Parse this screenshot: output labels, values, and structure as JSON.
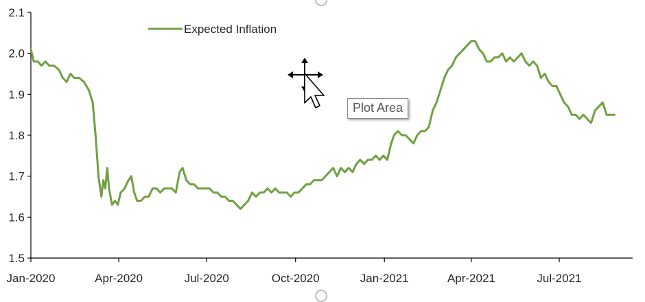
{
  "tooltip": {
    "text": "Plot Area"
  },
  "chart_data": {
    "type": "line",
    "title": "",
    "xlabel": "",
    "ylabel": "",
    "ylim": [
      1.5,
      2.1
    ],
    "yticks": [
      "1.5",
      "1.6",
      "1.7",
      "1.8",
      "1.9",
      "2.0",
      "2.1"
    ],
    "xlim": [
      "2020-01-01",
      "2021-09-15"
    ],
    "xticks": [
      {
        "date": "2020-01-01",
        "label": "Jan-2020"
      },
      {
        "date": "2020-04-01",
        "label": "Apr-2020"
      },
      {
        "date": "2020-07-01",
        "label": "Jul-2020"
      },
      {
        "date": "2020-10-01",
        "label": "Oct-2020"
      },
      {
        "date": "2021-01-01",
        "label": "Jan-2021"
      },
      {
        "date": "2021-04-01",
        "label": "Apr-2021"
      },
      {
        "date": "2021-07-01",
        "label": "Jul-2021"
      }
    ],
    "legend_position": "top-left",
    "grid": false,
    "series": [
      {
        "name": "Expected Inflation",
        "color": "#70a040",
        "points": [
          [
            "2020-01-01",
            2.01
          ],
          [
            "2020-01-04",
            1.98
          ],
          [
            "2020-01-08",
            1.98
          ],
          [
            "2020-01-12",
            1.97
          ],
          [
            "2020-01-16",
            1.98
          ],
          [
            "2020-01-20",
            1.97
          ],
          [
            "2020-01-25",
            1.97
          ],
          [
            "2020-01-30",
            1.96
          ],
          [
            "2020-02-03",
            1.94
          ],
          [
            "2020-02-07",
            1.93
          ],
          [
            "2020-02-11",
            1.95
          ],
          [
            "2020-02-15",
            1.94
          ],
          [
            "2020-02-20",
            1.94
          ],
          [
            "2020-02-25",
            1.93
          ],
          [
            "2020-03-01",
            1.91
          ],
          [
            "2020-03-05",
            1.88
          ],
          [
            "2020-03-08",
            1.8
          ],
          [
            "2020-03-11",
            1.7
          ],
          [
            "2020-03-14",
            1.65
          ],
          [
            "2020-03-16",
            1.69
          ],
          [
            "2020-03-18",
            1.67
          ],
          [
            "2020-03-20",
            1.72
          ],
          [
            "2020-03-22",
            1.67
          ],
          [
            "2020-03-25",
            1.63
          ],
          [
            "2020-03-28",
            1.64
          ],
          [
            "2020-03-31",
            1.63
          ],
          [
            "2020-04-03",
            1.66
          ],
          [
            "2020-04-07",
            1.67
          ],
          [
            "2020-04-11",
            1.69
          ],
          [
            "2020-04-14",
            1.7
          ],
          [
            "2020-04-17",
            1.66
          ],
          [
            "2020-04-20",
            1.64
          ],
          [
            "2020-04-24",
            1.64
          ],
          [
            "2020-04-28",
            1.65
          ],
          [
            "2020-05-02",
            1.65
          ],
          [
            "2020-05-06",
            1.67
          ],
          [
            "2020-05-10",
            1.67
          ],
          [
            "2020-05-14",
            1.66
          ],
          [
            "2020-05-18",
            1.67
          ],
          [
            "2020-05-22",
            1.67
          ],
          [
            "2020-05-26",
            1.67
          ],
          [
            "2020-05-30",
            1.66
          ],
          [
            "2020-06-03",
            1.71
          ],
          [
            "2020-06-06",
            1.72
          ],
          [
            "2020-06-10",
            1.69
          ],
          [
            "2020-06-14",
            1.68
          ],
          [
            "2020-06-18",
            1.68
          ],
          [
            "2020-06-22",
            1.67
          ],
          [
            "2020-06-26",
            1.67
          ],
          [
            "2020-06-30",
            1.67
          ],
          [
            "2020-07-04",
            1.67
          ],
          [
            "2020-07-08",
            1.66
          ],
          [
            "2020-07-12",
            1.66
          ],
          [
            "2020-07-16",
            1.65
          ],
          [
            "2020-07-20",
            1.65
          ],
          [
            "2020-07-24",
            1.64
          ],
          [
            "2020-07-28",
            1.64
          ],
          [
            "2020-08-01",
            1.63
          ],
          [
            "2020-08-05",
            1.62
          ],
          [
            "2020-08-09",
            1.63
          ],
          [
            "2020-08-13",
            1.64
          ],
          [
            "2020-08-17",
            1.66
          ],
          [
            "2020-08-21",
            1.65
          ],
          [
            "2020-08-25",
            1.66
          ],
          [
            "2020-08-29",
            1.66
          ],
          [
            "2020-09-02",
            1.67
          ],
          [
            "2020-09-06",
            1.66
          ],
          [
            "2020-09-10",
            1.67
          ],
          [
            "2020-09-14",
            1.66
          ],
          [
            "2020-09-18",
            1.66
          ],
          [
            "2020-09-22",
            1.66
          ],
          [
            "2020-09-26",
            1.65
          ],
          [
            "2020-09-30",
            1.66
          ],
          [
            "2020-10-04",
            1.66
          ],
          [
            "2020-10-08",
            1.67
          ],
          [
            "2020-10-12",
            1.68
          ],
          [
            "2020-10-16",
            1.68
          ],
          [
            "2020-10-20",
            1.69
          ],
          [
            "2020-10-24",
            1.69
          ],
          [
            "2020-10-28",
            1.69
          ],
          [
            "2020-11-01",
            1.7
          ],
          [
            "2020-11-05",
            1.71
          ],
          [
            "2020-11-09",
            1.72
          ],
          [
            "2020-11-13",
            1.7
          ],
          [
            "2020-11-17",
            1.72
          ],
          [
            "2020-11-21",
            1.71
          ],
          [
            "2020-11-25",
            1.72
          ],
          [
            "2020-11-29",
            1.71
          ],
          [
            "2020-12-03",
            1.73
          ],
          [
            "2020-12-07",
            1.74
          ],
          [
            "2020-12-11",
            1.73
          ],
          [
            "2020-12-15",
            1.74
          ],
          [
            "2020-12-19",
            1.74
          ],
          [
            "2020-12-23",
            1.75
          ],
          [
            "2020-12-27",
            1.74
          ],
          [
            "2020-12-31",
            1.75
          ],
          [
            "2021-01-04",
            1.74
          ],
          [
            "2021-01-08",
            1.78
          ],
          [
            "2021-01-11",
            1.8
          ],
          [
            "2021-01-15",
            1.81
          ],
          [
            "2021-01-19",
            1.8
          ],
          [
            "2021-01-23",
            1.8
          ],
          [
            "2021-01-27",
            1.79
          ],
          [
            "2021-01-31",
            1.78
          ],
          [
            "2021-02-04",
            1.8
          ],
          [
            "2021-02-08",
            1.81
          ],
          [
            "2021-02-12",
            1.81
          ],
          [
            "2021-02-16",
            1.82
          ],
          [
            "2021-02-20",
            1.86
          ],
          [
            "2021-02-24",
            1.88
          ],
          [
            "2021-02-28",
            1.91
          ],
          [
            "2021-03-04",
            1.94
          ],
          [
            "2021-03-08",
            1.96
          ],
          [
            "2021-03-12",
            1.97
          ],
          [
            "2021-03-16",
            1.99
          ],
          [
            "2021-03-20",
            2.0
          ],
          [
            "2021-03-24",
            2.01
          ],
          [
            "2021-03-28",
            2.02
          ],
          [
            "2021-04-01",
            2.03
          ],
          [
            "2021-04-05",
            2.03
          ],
          [
            "2021-04-09",
            2.01
          ],
          [
            "2021-04-13",
            2.0
          ],
          [
            "2021-04-17",
            1.98
          ],
          [
            "2021-04-21",
            1.98
          ],
          [
            "2021-04-25",
            1.99
          ],
          [
            "2021-04-29",
            1.99
          ],
          [
            "2021-05-03",
            2.0
          ],
          [
            "2021-05-07",
            1.98
          ],
          [
            "2021-05-11",
            1.99
          ],
          [
            "2021-05-15",
            1.98
          ],
          [
            "2021-05-19",
            1.99
          ],
          [
            "2021-05-23",
            2.0
          ],
          [
            "2021-05-27",
            1.98
          ],
          [
            "2021-05-31",
            1.97
          ],
          [
            "2021-06-04",
            1.98
          ],
          [
            "2021-06-08",
            1.97
          ],
          [
            "2021-06-12",
            1.94
          ],
          [
            "2021-06-16",
            1.95
          ],
          [
            "2021-06-20",
            1.93
          ],
          [
            "2021-06-24",
            1.92
          ],
          [
            "2021-06-28",
            1.92
          ],
          [
            "2021-07-02",
            1.9
          ],
          [
            "2021-07-06",
            1.88
          ],
          [
            "2021-07-10",
            1.87
          ],
          [
            "2021-07-14",
            1.85
          ],
          [
            "2021-07-18",
            1.85
          ],
          [
            "2021-07-22",
            1.84
          ],
          [
            "2021-07-26",
            1.85
          ],
          [
            "2021-07-30",
            1.84
          ],
          [
            "2021-08-03",
            1.83
          ],
          [
            "2021-08-07",
            1.86
          ],
          [
            "2021-08-11",
            1.87
          ],
          [
            "2021-08-15",
            1.88
          ],
          [
            "2021-08-19",
            1.85
          ],
          [
            "2021-08-23",
            1.85
          ],
          [
            "2021-08-27",
            1.85
          ]
        ]
      }
    ]
  }
}
